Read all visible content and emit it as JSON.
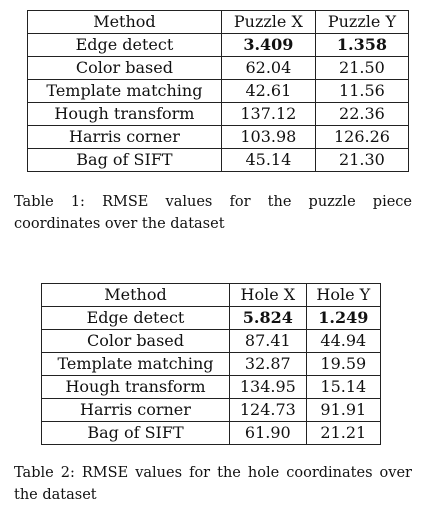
{
  "table1": {
    "headers": [
      "Method",
      "Puzzle X",
      "Puzzle Y"
    ],
    "rows": [
      [
        "Edge detect",
        "3.409",
        "1.358"
      ],
      [
        "Color based",
        "62.04",
        "21.50"
      ],
      [
        "Template matching",
        "42.61",
        "11.56"
      ],
      [
        "Hough transform",
        "137.12",
        "22.36"
      ],
      [
        "Harris corner",
        "103.98",
        "126.26"
      ],
      [
        "Bag of SIFT",
        "45.14",
        "21.30"
      ]
    ],
    "caption": "Table 1: RMSE values for the puzzle piece coordinates over the dataset"
  },
  "table2": {
    "headers": [
      "Method",
      "Hole X",
      "Hole Y"
    ],
    "rows": [
      [
        "Edge detect",
        "5.824",
        "1.249"
      ],
      [
        "Color based",
        "87.41",
        "44.94"
      ],
      [
        "Template matching",
        "32.87",
        "19.59"
      ],
      [
        "Hough transform",
        "134.95",
        "15.14"
      ],
      [
        "Harris corner",
        "124.73",
        "91.91"
      ],
      [
        "Bag of SIFT",
        "61.90",
        "21.21"
      ]
    ],
    "caption": "Table 2: RMSE values for the hole coordinates over the dataset"
  }
}
